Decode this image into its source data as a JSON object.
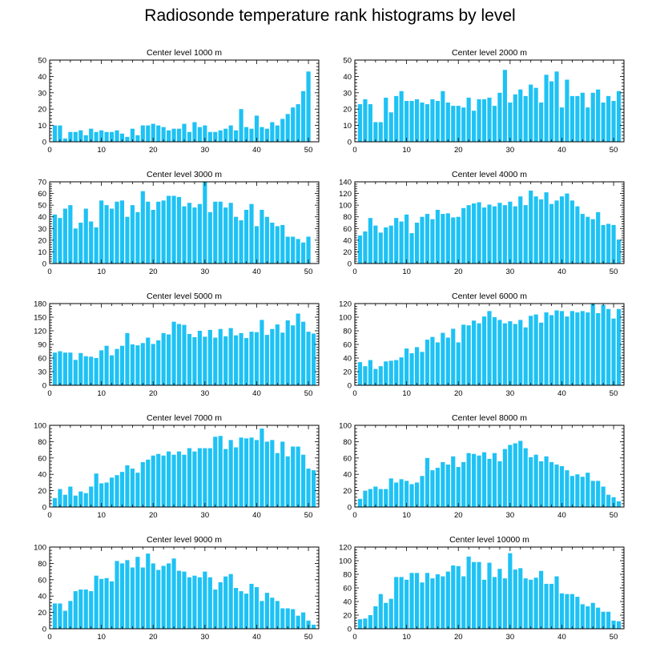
{
  "title": "Radiosonde temperature rank histograms by level",
  "colors": {
    "bar": "#1ec2f4",
    "axis": "#000000",
    "background": "#ffffff"
  },
  "chart_data": [
    {
      "type": "bar",
      "title": "Center level 1000 m",
      "ylim": [
        0,
        50
      ],
      "yticks": [
        0,
        10,
        20,
        30,
        40,
        50
      ],
      "xticks": [
        0,
        10,
        20,
        30,
        40,
        50
      ],
      "xlim": [
        0,
        52
      ],
      "x": [
        1,
        2,
        3,
        4,
        5,
        6,
        7,
        8,
        9,
        10,
        11,
        12,
        13,
        14,
        15,
        16,
        17,
        18,
        19,
        20,
        21,
        22,
        23,
        24,
        25,
        26,
        27,
        28,
        29,
        30,
        31,
        32,
        33,
        34,
        35,
        36,
        37,
        38,
        39,
        40,
        41,
        42,
        43,
        44,
        45,
        46,
        47,
        48,
        49,
        50,
        51
      ],
      "values": [
        10,
        10,
        2,
        6,
        6,
        7,
        4,
        8,
        6,
        7,
        6,
        6,
        7,
        5,
        3,
        8,
        4,
        10,
        10,
        11,
        10,
        9,
        7,
        8,
        8,
        11,
        6,
        12,
        9,
        10,
        6,
        6,
        7,
        8,
        10,
        7,
        20,
        9,
        8,
        16,
        9,
        8,
        12,
        10,
        14,
        17,
        21,
        23,
        31,
        43,
        0
      ]
    },
    {
      "type": "bar",
      "title": "Center level 2000 m",
      "ylim": [
        0,
        50
      ],
      "yticks": [
        0,
        10,
        20,
        30,
        40,
        50
      ],
      "xticks": [
        0,
        10,
        20,
        30,
        40,
        50
      ],
      "xlim": [
        0,
        52
      ],
      "x": [
        1,
        2,
        3,
        4,
        5,
        6,
        7,
        8,
        9,
        10,
        11,
        12,
        13,
        14,
        15,
        16,
        17,
        18,
        19,
        20,
        21,
        22,
        23,
        24,
        25,
        26,
        27,
        28,
        29,
        30,
        31,
        32,
        33,
        34,
        35,
        36,
        37,
        38,
        39,
        40,
        41,
        42,
        43,
        44,
        45,
        46,
        47,
        48,
        49,
        50,
        51
      ],
      "values": [
        23,
        26,
        23,
        12,
        12,
        27,
        18,
        28,
        31,
        25,
        25,
        26,
        24,
        23,
        26,
        25,
        31,
        24,
        22,
        22,
        21,
        27,
        19,
        26,
        26,
        27,
        22,
        30,
        44,
        24,
        29,
        32,
        28,
        35,
        33,
        24,
        41,
        37,
        43,
        21,
        38,
        28,
        28,
        30,
        21,
        30,
        32,
        24,
        28,
        25,
        31
      ]
    },
    {
      "type": "bar",
      "title": "Center level 3000 m",
      "ylim": [
        0,
        70
      ],
      "yticks": [
        0,
        10,
        20,
        30,
        40,
        50,
        60,
        70
      ],
      "xticks": [
        0,
        10,
        20,
        30,
        40,
        50
      ],
      "xlim": [
        0,
        52
      ],
      "x": [
        1,
        2,
        3,
        4,
        5,
        6,
        7,
        8,
        9,
        10,
        11,
        12,
        13,
        14,
        15,
        16,
        17,
        18,
        19,
        20,
        21,
        22,
        23,
        24,
        25,
        26,
        27,
        28,
        29,
        30,
        31,
        32,
        33,
        34,
        35,
        36,
        37,
        38,
        39,
        40,
        41,
        42,
        43,
        44,
        45,
        46,
        47,
        48,
        49,
        50,
        51
      ],
      "values": [
        42,
        39,
        47,
        50,
        30,
        35,
        47,
        36,
        31,
        54,
        50,
        47,
        53,
        54,
        40,
        50,
        44,
        62,
        53,
        46,
        53,
        54,
        58,
        58,
        57,
        49,
        52,
        48,
        51,
        70,
        44,
        53,
        53,
        48,
        52,
        40,
        37,
        46,
        51,
        32,
        46,
        40,
        35,
        32,
        33,
        23,
        23,
        21,
        18,
        23,
        0
      ]
    },
    {
      "type": "bar",
      "title": "Center level 4000 m",
      "ylim": [
        0,
        140
      ],
      "yticks": [
        0,
        20,
        40,
        60,
        80,
        100,
        120,
        140
      ],
      "xticks": [
        0,
        10,
        20,
        30,
        40,
        50
      ],
      "xlim": [
        0,
        52
      ],
      "x": [
        1,
        2,
        3,
        4,
        5,
        6,
        7,
        8,
        9,
        10,
        11,
        12,
        13,
        14,
        15,
        16,
        17,
        18,
        19,
        20,
        21,
        22,
        23,
        24,
        25,
        26,
        27,
        28,
        29,
        30,
        31,
        32,
        33,
        34,
        35,
        36,
        37,
        38,
        39,
        40,
        41,
        42,
        43,
        44,
        45,
        46,
        47,
        48,
        49,
        50,
        51
      ],
      "values": [
        48,
        55,
        78,
        65,
        53,
        62,
        65,
        78,
        72,
        84,
        52,
        70,
        80,
        85,
        76,
        92,
        85,
        86,
        79,
        80,
        95,
        100,
        103,
        105,
        96,
        101,
        98,
        104,
        100,
        106,
        98,
        115,
        100,
        125,
        115,
        110,
        122,
        102,
        108,
        115,
        120,
        108,
        98,
        85,
        80,
        76,
        88,
        66,
        68,
        66,
        41
      ]
    },
    {
      "type": "bar",
      "title": "Center level 5000 m",
      "ylim": [
        0,
        180
      ],
      "yticks": [
        0,
        30,
        60,
        90,
        120,
        150,
        180
      ],
      "xticks": [
        0,
        10,
        20,
        30,
        40,
        50
      ],
      "xlim": [
        0,
        52
      ],
      "x": [
        1,
        2,
        3,
        4,
        5,
        6,
        7,
        8,
        9,
        10,
        11,
        12,
        13,
        14,
        15,
        16,
        17,
        18,
        19,
        20,
        21,
        22,
        23,
        24,
        25,
        26,
        27,
        28,
        29,
        30,
        31,
        32,
        33,
        34,
        35,
        36,
        37,
        38,
        39,
        40,
        41,
        42,
        43,
        44,
        45,
        46,
        47,
        48,
        49,
        50,
        51
      ],
      "values": [
        72,
        75,
        72,
        72,
        56,
        71,
        64,
        63,
        60,
        77,
        87,
        66,
        80,
        87,
        115,
        90,
        88,
        93,
        105,
        91,
        99,
        115,
        112,
        140,
        135,
        133,
        113,
        106,
        120,
        107,
        122,
        105,
        124,
        108,
        126,
        110,
        115,
        104,
        118,
        117,
        144,
        111,
        124,
        134,
        116,
        143,
        132,
        158,
        140,
        118,
        114
      ]
    },
    {
      "type": "bar",
      "title": "Center level 6000 m",
      "ylim": [
        0,
        120
      ],
      "yticks": [
        0,
        20,
        40,
        60,
        80,
        100,
        120
      ],
      "xticks": [
        0,
        10,
        20,
        30,
        40,
        50
      ],
      "xlim": [
        0,
        52
      ],
      "x": [
        1,
        2,
        3,
        4,
        5,
        6,
        7,
        8,
        9,
        10,
        11,
        12,
        13,
        14,
        15,
        16,
        17,
        18,
        19,
        20,
        21,
        22,
        23,
        24,
        25,
        26,
        27,
        28,
        29,
        30,
        31,
        32,
        33,
        34,
        35,
        36,
        37,
        38,
        39,
        40,
        41,
        42,
        43,
        44,
        45,
        46,
        47,
        48,
        49,
        50,
        51
      ],
      "values": [
        34,
        28,
        37,
        24,
        28,
        35,
        36,
        37,
        41,
        54,
        47,
        56,
        49,
        67,
        71,
        63,
        77,
        70,
        83,
        63,
        89,
        88,
        95,
        91,
        101,
        109,
        100,
        96,
        91,
        94,
        90,
        96,
        85,
        102,
        104,
        92,
        107,
        103,
        110,
        109,
        101,
        109,
        107,
        109,
        107,
        120,
        106,
        118,
        112,
        98,
        112
      ]
    },
    {
      "type": "bar",
      "title": "Center level 7000 m",
      "ylim": [
        0,
        100
      ],
      "yticks": [
        0,
        20,
        40,
        60,
        80,
        100
      ],
      "xticks": [
        0,
        10,
        20,
        30,
        40,
        50
      ],
      "xlim": [
        0,
        52
      ],
      "x": [
        1,
        2,
        3,
        4,
        5,
        6,
        7,
        8,
        9,
        10,
        11,
        12,
        13,
        14,
        15,
        16,
        17,
        18,
        19,
        20,
        21,
        22,
        23,
        24,
        25,
        26,
        27,
        28,
        29,
        30,
        31,
        32,
        33,
        34,
        35,
        36,
        37,
        38,
        39,
        40,
        41,
        42,
        43,
        44,
        45,
        46,
        47,
        48,
        49,
        50,
        51
      ],
      "values": [
        11,
        22,
        15,
        25,
        14,
        19,
        17,
        25,
        41,
        29,
        30,
        36,
        39,
        43,
        51,
        47,
        42,
        55,
        58,
        63,
        65,
        63,
        68,
        64,
        68,
        64,
        72,
        68,
        72,
        72,
        72,
        86,
        87,
        71,
        82,
        73,
        85,
        84,
        85,
        82,
        96,
        80,
        82,
        66,
        80,
        62,
        74,
        74,
        64,
        47,
        45
      ]
    },
    {
      "type": "bar",
      "title": "Center level 8000 m",
      "ylim": [
        0,
        100
      ],
      "yticks": [
        0,
        20,
        40,
        60,
        80,
        100
      ],
      "xticks": [
        0,
        10,
        20,
        30,
        40,
        50
      ],
      "xlim": [
        0,
        52
      ],
      "x": [
        1,
        2,
        3,
        4,
        5,
        6,
        7,
        8,
        9,
        10,
        11,
        12,
        13,
        14,
        15,
        16,
        17,
        18,
        19,
        20,
        21,
        22,
        23,
        24,
        25,
        26,
        27,
        28,
        29,
        30,
        31,
        32,
        33,
        34,
        35,
        36,
        37,
        38,
        39,
        40,
        41,
        42,
        43,
        44,
        45,
        46,
        47,
        48,
        49,
        50,
        51
      ],
      "values": [
        10,
        20,
        22,
        25,
        22,
        22,
        35,
        30,
        34,
        32,
        28,
        30,
        38,
        60,
        45,
        48,
        55,
        52,
        62,
        49,
        55,
        66,
        65,
        63,
        67,
        59,
        66,
        56,
        71,
        76,
        78,
        81,
        72,
        61,
        64,
        56,
        62,
        55,
        52,
        50,
        45,
        38,
        40,
        37,
        42,
        32,
        32,
        25,
        15,
        12,
        7
      ]
    },
    {
      "type": "bar",
      "title": "Center level 9000 m",
      "ylim": [
        0,
        100
      ],
      "yticks": [
        0,
        20,
        40,
        60,
        80,
        100
      ],
      "xticks": [
        0,
        10,
        20,
        30,
        40,
        50
      ],
      "xlim": [
        0,
        52
      ],
      "x": [
        1,
        2,
        3,
        4,
        5,
        6,
        7,
        8,
        9,
        10,
        11,
        12,
        13,
        14,
        15,
        16,
        17,
        18,
        19,
        20,
        21,
        22,
        23,
        24,
        25,
        26,
        27,
        28,
        29,
        30,
        31,
        32,
        33,
        34,
        35,
        36,
        37,
        38,
        39,
        40,
        41,
        42,
        43,
        44,
        45,
        46,
        47,
        48,
        49,
        50,
        51
      ],
      "values": [
        31,
        31,
        22,
        34,
        46,
        48,
        48,
        46,
        65,
        61,
        62,
        58,
        83,
        80,
        84,
        75,
        88,
        75,
        92,
        80,
        72,
        77,
        80,
        86,
        71,
        70,
        63,
        65,
        63,
        70,
        63,
        48,
        57,
        64,
        67,
        50,
        46,
        43,
        55,
        51,
        34,
        44,
        38,
        34,
        25,
        25,
        24,
        16,
        20,
        10,
        5
      ]
    },
    {
      "type": "bar",
      "title": "Center level 10000 m",
      "ylim": [
        0,
        120
      ],
      "yticks": [
        0,
        20,
        40,
        60,
        80,
        100,
        120
      ],
      "xticks": [
        0,
        10,
        20,
        30,
        40,
        50
      ],
      "xlim": [
        0,
        52
      ],
      "x": [
        1,
        2,
        3,
        4,
        5,
        6,
        7,
        8,
        9,
        10,
        11,
        12,
        13,
        14,
        15,
        16,
        17,
        18,
        19,
        20,
        21,
        22,
        23,
        24,
        25,
        26,
        27,
        28,
        29,
        30,
        31,
        32,
        33,
        34,
        35,
        36,
        37,
        38,
        39,
        40,
        41,
        42,
        43,
        44,
        45,
        46,
        47,
        48,
        49,
        50,
        51
      ],
      "values": [
        14,
        15,
        20,
        33,
        51,
        38,
        44,
        76,
        76,
        72,
        82,
        82,
        68,
        82,
        74,
        80,
        77,
        84,
        93,
        92,
        77,
        106,
        98,
        98,
        72,
        97,
        76,
        88,
        74,
        111,
        87,
        89,
        74,
        72,
        75,
        85,
        66,
        66,
        77,
        52,
        51,
        51,
        47,
        36,
        33,
        38,
        31,
        25,
        25,
        12,
        11
      ]
    }
  ]
}
